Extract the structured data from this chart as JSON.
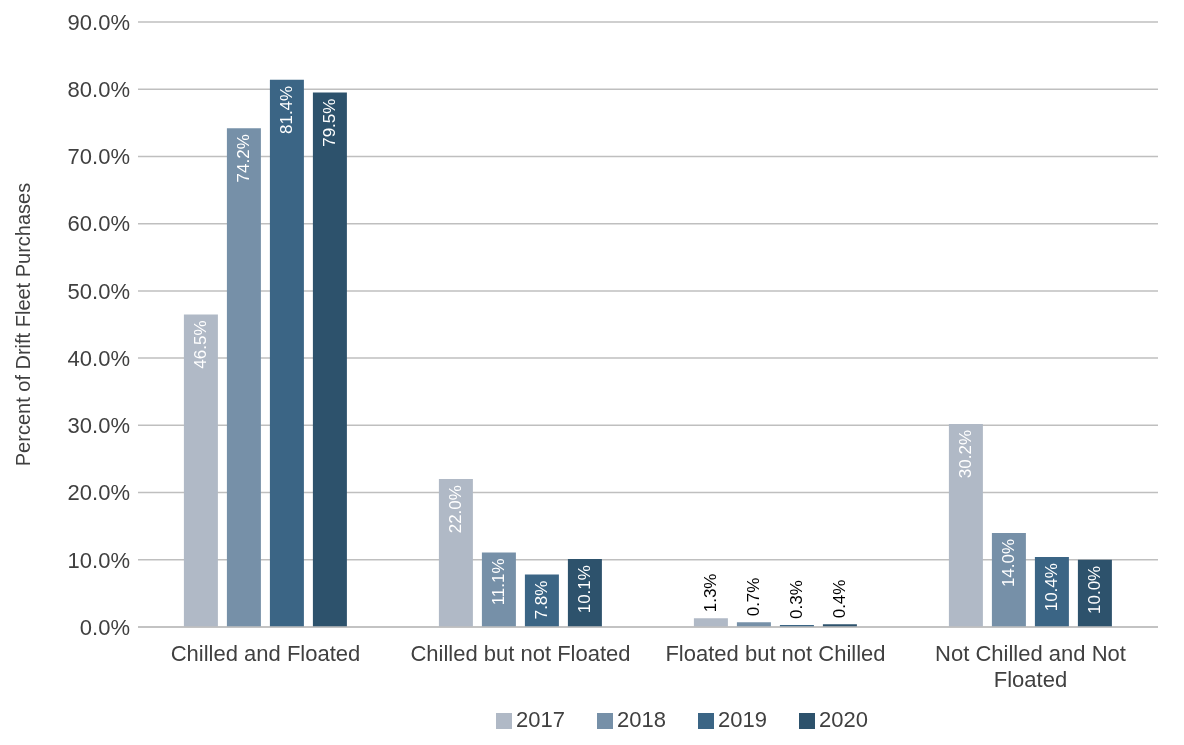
{
  "chart_data": {
    "type": "bar",
    "ylabel": "Percent of Drift Fleet Purchases",
    "categories": [
      "Chilled and Floated",
      "Chilled but not Floated",
      "Floated but not Chilled",
      "Not Chilled and Not Floated"
    ],
    "series": [
      {
        "name": "2017",
        "color": "#b0b9c6",
        "values": [
          46.5,
          22.0,
          1.3,
          30.2
        ],
        "value_labels": [
          "46.5%",
          "22.0%",
          "1.3%",
          "30.2%"
        ]
      },
      {
        "name": "2018",
        "color": "#7690a8",
        "values": [
          74.2,
          11.1,
          0.7,
          14.0
        ],
        "value_labels": [
          "74.2%",
          "11.1%",
          "0.7%",
          "14.0%"
        ]
      },
      {
        "name": "2019",
        "color": "#3b6585",
        "values": [
          81.4,
          7.8,
          0.3,
          10.4
        ],
        "value_labels": [
          "81.4%",
          "7.8%",
          "0.3%",
          "10.4%"
        ]
      },
      {
        "name": "2020",
        "color": "#2d526c",
        "values": [
          79.5,
          10.1,
          0.4,
          10.0
        ],
        "value_labels": [
          "79.5%",
          "10.1%",
          "0.4%",
          "10.0%"
        ]
      }
    ],
    "ylim": [
      0,
      90
    ],
    "yticks": [
      {
        "value": 0,
        "label": "0.0%"
      },
      {
        "value": 10,
        "label": "10.0%"
      },
      {
        "value": 20,
        "label": "20.0%"
      },
      {
        "value": 30,
        "label": "30.0%"
      },
      {
        "value": 40,
        "label": "40.0%"
      },
      {
        "value": 50,
        "label": "50.0%"
      },
      {
        "value": 60,
        "label": "60.0%"
      },
      {
        "value": 70,
        "label": "70.0%"
      },
      {
        "value": 80,
        "label": "80.0%"
      },
      {
        "value": 90,
        "label": "90.0%"
      }
    ],
    "grid": "y",
    "legend": "bottom"
  }
}
